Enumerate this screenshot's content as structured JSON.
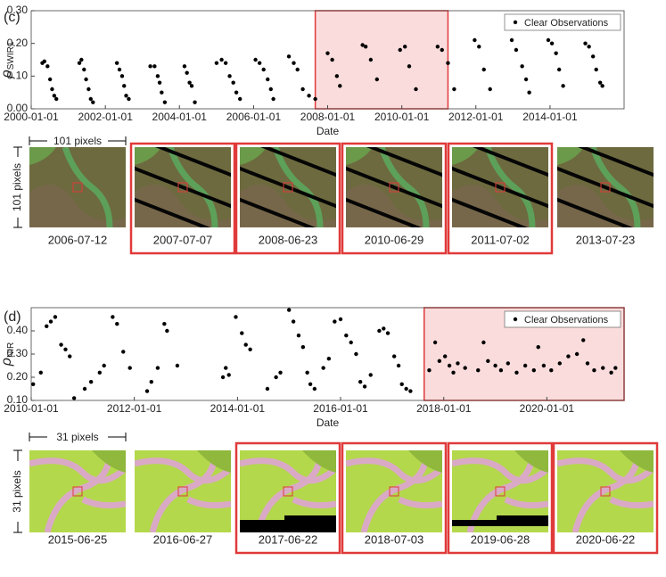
{
  "chart_data": [
    {
      "type": "scatter",
      "panel_label": "(c)",
      "ylabel": "ρ",
      "ylabel_sub": "SWIR1",
      "xlabel": "Date",
      "xlim": [
        "2000-01-01",
        "2016-01-01"
      ],
      "xticks": [
        "2000-01-01",
        "2002-01-01",
        "2004-01-01",
        "2006-01-01",
        "2008-01-01",
        "2010-01-01",
        "2012-01-01",
        "2014-01-01"
      ],
      "ylim": [
        0,
        0.3
      ],
      "yticks": [
        {
          "value": 0,
          "label": "0.00"
        },
        {
          "value": 0.1,
          "label": "0.10"
        },
        {
          "value": 0.2,
          "label": "0.20"
        },
        {
          "value": 0.3,
          "label": "0.30"
        }
      ],
      "legend": "upper right",
      "highlight": [
        "2007-09-01",
        "2011-04-01"
      ],
      "highlight_color": "#fadcdc",
      "highlight_edge": "#e03a3a",
      "series": [
        {
          "name": "Clear Observations",
          "color": "#000000",
          "x": [
            "2000-04-20",
            "2000-05-10",
            "2000-06-10",
            "2000-07-05",
            "2000-07-25",
            "2000-08-15",
            "2000-09-05",
            "2001-04-20",
            "2001-05-10",
            "2001-06-05",
            "2001-06-25",
            "2001-07-20",
            "2001-08-10",
            "2001-09-01",
            "2002-04-25",
            "2002-05-20",
            "2002-06-15",
            "2002-07-05",
            "2002-07-25",
            "2002-08-20",
            "2003-03-20",
            "2003-05-01",
            "2003-06-01",
            "2003-06-20",
            "2003-07-10",
            "2003-08-10",
            "2004-02-20",
            "2004-03-15",
            "2004-04-10",
            "2004-05-01",
            "2004-06-01",
            "2005-01-01",
            "2005-02-20",
            "2005-04-01",
            "2005-05-10",
            "2005-06-15",
            "2005-07-15",
            "2005-08-20",
            "2006-01-20",
            "2006-03-01",
            "2006-04-10",
            "2006-05-20",
            "2006-06-20",
            "2006-07-15",
            "2006-12-15",
            "2007-02-01",
            "2007-03-10",
            "2007-05-01",
            "2007-07-01",
            "2007-09-01",
            "2008-01-01",
            "2008-02-15",
            "2008-04-01",
            "2008-05-01",
            "2008-12-10",
            "2009-01-10",
            "2009-03-01",
            "2009-05-01",
            "2009-12-15",
            "2010-02-01",
            "2010-03-15",
            "2010-05-20",
            "2010-12-20",
            "2011-02-01",
            "2011-04-01",
            "2011-06-01",
            "2011-12-20",
            "2012-02-01",
            "2012-03-20",
            "2012-05-20",
            "2012-12-20",
            "2013-02-01",
            "2013-04-01",
            "2013-05-10",
            "2013-06-10",
            "2013-12-15",
            "2014-01-20",
            "2014-03-01",
            "2014-04-01",
            "2014-05-10",
            "2014-12-15",
            "2015-01-20",
            "2015-03-01",
            "2015-04-01",
            "2015-05-10",
            "2015-06-01"
          ],
          "values": [
            0.14,
            0.145,
            0.13,
            0.09,
            0.06,
            0.04,
            0.03,
            0.14,
            0.15,
            0.12,
            0.09,
            0.06,
            0.03,
            0.02,
            0.14,
            0.12,
            0.1,
            0.07,
            0.04,
            0.03,
            0.13,
            0.13,
            0.1,
            0.08,
            0.05,
            0.02,
            0.13,
            0.11,
            0.08,
            0.07,
            0.02,
            0.14,
            0.15,
            0.14,
            0.1,
            0.08,
            0.05,
            0.03,
            0.15,
            0.14,
            0.12,
            0.09,
            0.06,
            0.03,
            0.16,
            0.14,
            0.12,
            0.06,
            0.04,
            0.03,
            0.17,
            0.15,
            0.1,
            0.07,
            0.195,
            0.19,
            0.15,
            0.09,
            0.18,
            0.19,
            0.13,
            0.06,
            0.19,
            0.18,
            0.14,
            0.06,
            0.21,
            0.19,
            0.12,
            0.06,
            0.21,
            0.18,
            0.13,
            0.09,
            0.05,
            0.21,
            0.2,
            0.17,
            0.12,
            0.07,
            0.2,
            0.19,
            0.16,
            0.12,
            0.08,
            0.07
          ]
        }
      ]
    },
    {
      "type": "scatter",
      "panel_label": "(d)",
      "ylabel": "ρ",
      "ylabel_sub": "NIR",
      "xlabel": "Date",
      "xlim": [
        "2010-01-01",
        "2021-07-01"
      ],
      "xticks": [
        "2010-01-01",
        "2012-01-01",
        "2014-01-01",
        "2016-01-01",
        "2018-01-01",
        "2020-01-01"
      ],
      "ylim": [
        0.1,
        0.5
      ],
      "yticks": [
        {
          "value": 0.1,
          "label": "0.10"
        },
        {
          "value": 0.2,
          "label": "0.20"
        },
        {
          "value": 0.3,
          "label": "0.30"
        },
        {
          "value": 0.4,
          "label": "0.40"
        }
      ],
      "legend": "upper right",
      "highlight": [
        "2017-08-15",
        "2021-07-01"
      ],
      "highlight_color": "#fadcdc",
      "highlight_edge": "#e03a3a",
      "series": [
        {
          "name": "Clear Observations",
          "color": "#000000",
          "x": [
            "2010-01-15",
            "2010-03-10",
            "2010-04-20",
            "2010-05-20",
            "2010-06-20",
            "2010-08-01",
            "2010-09-01",
            "2010-10-01",
            "2010-11-01",
            "2011-01-15",
            "2011-03-01",
            "2011-05-01",
            "2011-06-01",
            "2011-08-01",
            "2011-09-01",
            "2011-10-15",
            "2011-12-01",
            "2012-04-01",
            "2012-05-01",
            "2012-06-15",
            "2012-08-01",
            "2012-08-20",
            "2012-11-01",
            "2013-09-20",
            "2013-10-10",
            "2013-11-01",
            "2013-12-20",
            "2014-02-01",
            "2014-03-01",
            "2014-04-01",
            "2014-08-01",
            "2014-10-01",
            "2014-11-01",
            "2015-01-01",
            "2015-02-01",
            "2015-03-10",
            "2015-04-10",
            "2015-05-10",
            "2015-06-01",
            "2015-07-01",
            "2015-09-01",
            "2015-10-10",
            "2015-11-20",
            "2016-01-01",
            "2016-02-10",
            "2016-03-15",
            "2016-04-20",
            "2016-05-20",
            "2016-06-20",
            "2016-08-01",
            "2016-10-01",
            "2016-11-01",
            "2016-12-01",
            "2017-01-15",
            "2017-02-15",
            "2017-03-10",
            "2017-04-10",
            "2017-05-10",
            "2017-09-20",
            "2017-11-01",
            "2017-12-01",
            "2018-01-10",
            "2018-02-10",
            "2018-03-10",
            "2018-04-10",
            "2018-06-01",
            "2018-09-01",
            "2018-10-10",
            "2018-11-10",
            "2019-01-01",
            "2019-02-10",
            "2019-04-01",
            "2019-06-01",
            "2019-08-01",
            "2019-10-01",
            "2019-11-01",
            "2019-12-10",
            "2020-02-01",
            "2020-04-01",
            "2020-06-01",
            "2020-08-01",
            "2020-09-15",
            "2020-10-15",
            "2020-12-01",
            "2021-02-01",
            "2021-04-01",
            "2021-05-01"
          ],
          "values": [
            0.17,
            0.22,
            0.42,
            0.44,
            0.46,
            0.34,
            0.32,
            0.29,
            0.11,
            0.15,
            0.18,
            0.22,
            0.25,
            0.46,
            0.43,
            0.31,
            0.24,
            0.14,
            0.18,
            0.24,
            0.43,
            0.4,
            0.25,
            0.2,
            0.24,
            0.21,
            0.46,
            0.39,
            0.34,
            0.32,
            0.15,
            0.2,
            0.22,
            0.49,
            0.44,
            0.38,
            0.33,
            0.22,
            0.17,
            0.15,
            0.24,
            0.28,
            0.44,
            0.45,
            0.38,
            0.35,
            0.3,
            0.18,
            0.16,
            0.21,
            0.4,
            0.41,
            0.39,
            0.29,
            0.25,
            0.17,
            0.15,
            0.14,
            0.23,
            0.35,
            0.27,
            0.29,
            0.25,
            0.22,
            0.26,
            0.24,
            0.23,
            0.35,
            0.27,
            0.25,
            0.23,
            0.26,
            0.22,
            0.25,
            0.23,
            0.33,
            0.25,
            0.23,
            0.26,
            0.29,
            0.3,
            0.36,
            0.26,
            0.23,
            0.24,
            0.22,
            0.24
          ]
        }
      ]
    }
  ],
  "image_rows": [
    {
      "scale_label": "101 pixels",
      "images": [
        {
          "date": "2006-07-12",
          "highlighted": false
        },
        {
          "date": "2007-07-07",
          "highlighted": true
        },
        {
          "date": "2008-06-23",
          "highlighted": true
        },
        {
          "date": "2010-06-29",
          "highlighted": true
        },
        {
          "date": "2011-07-02",
          "highlighted": true
        },
        {
          "date": "2013-07-23",
          "highlighted": false
        }
      ]
    },
    {
      "scale_label": "31 pixels",
      "images": [
        {
          "date": "2015-06-25",
          "highlighted": false
        },
        {
          "date": "2016-06-27",
          "highlighted": false
        },
        {
          "date": "2017-06-22",
          "highlighted": true
        },
        {
          "date": "2018-07-03",
          "highlighted": true
        },
        {
          "date": "2019-06-28",
          "highlighted": true
        },
        {
          "date": "2020-06-22",
          "highlighted": true
        }
      ]
    }
  ]
}
